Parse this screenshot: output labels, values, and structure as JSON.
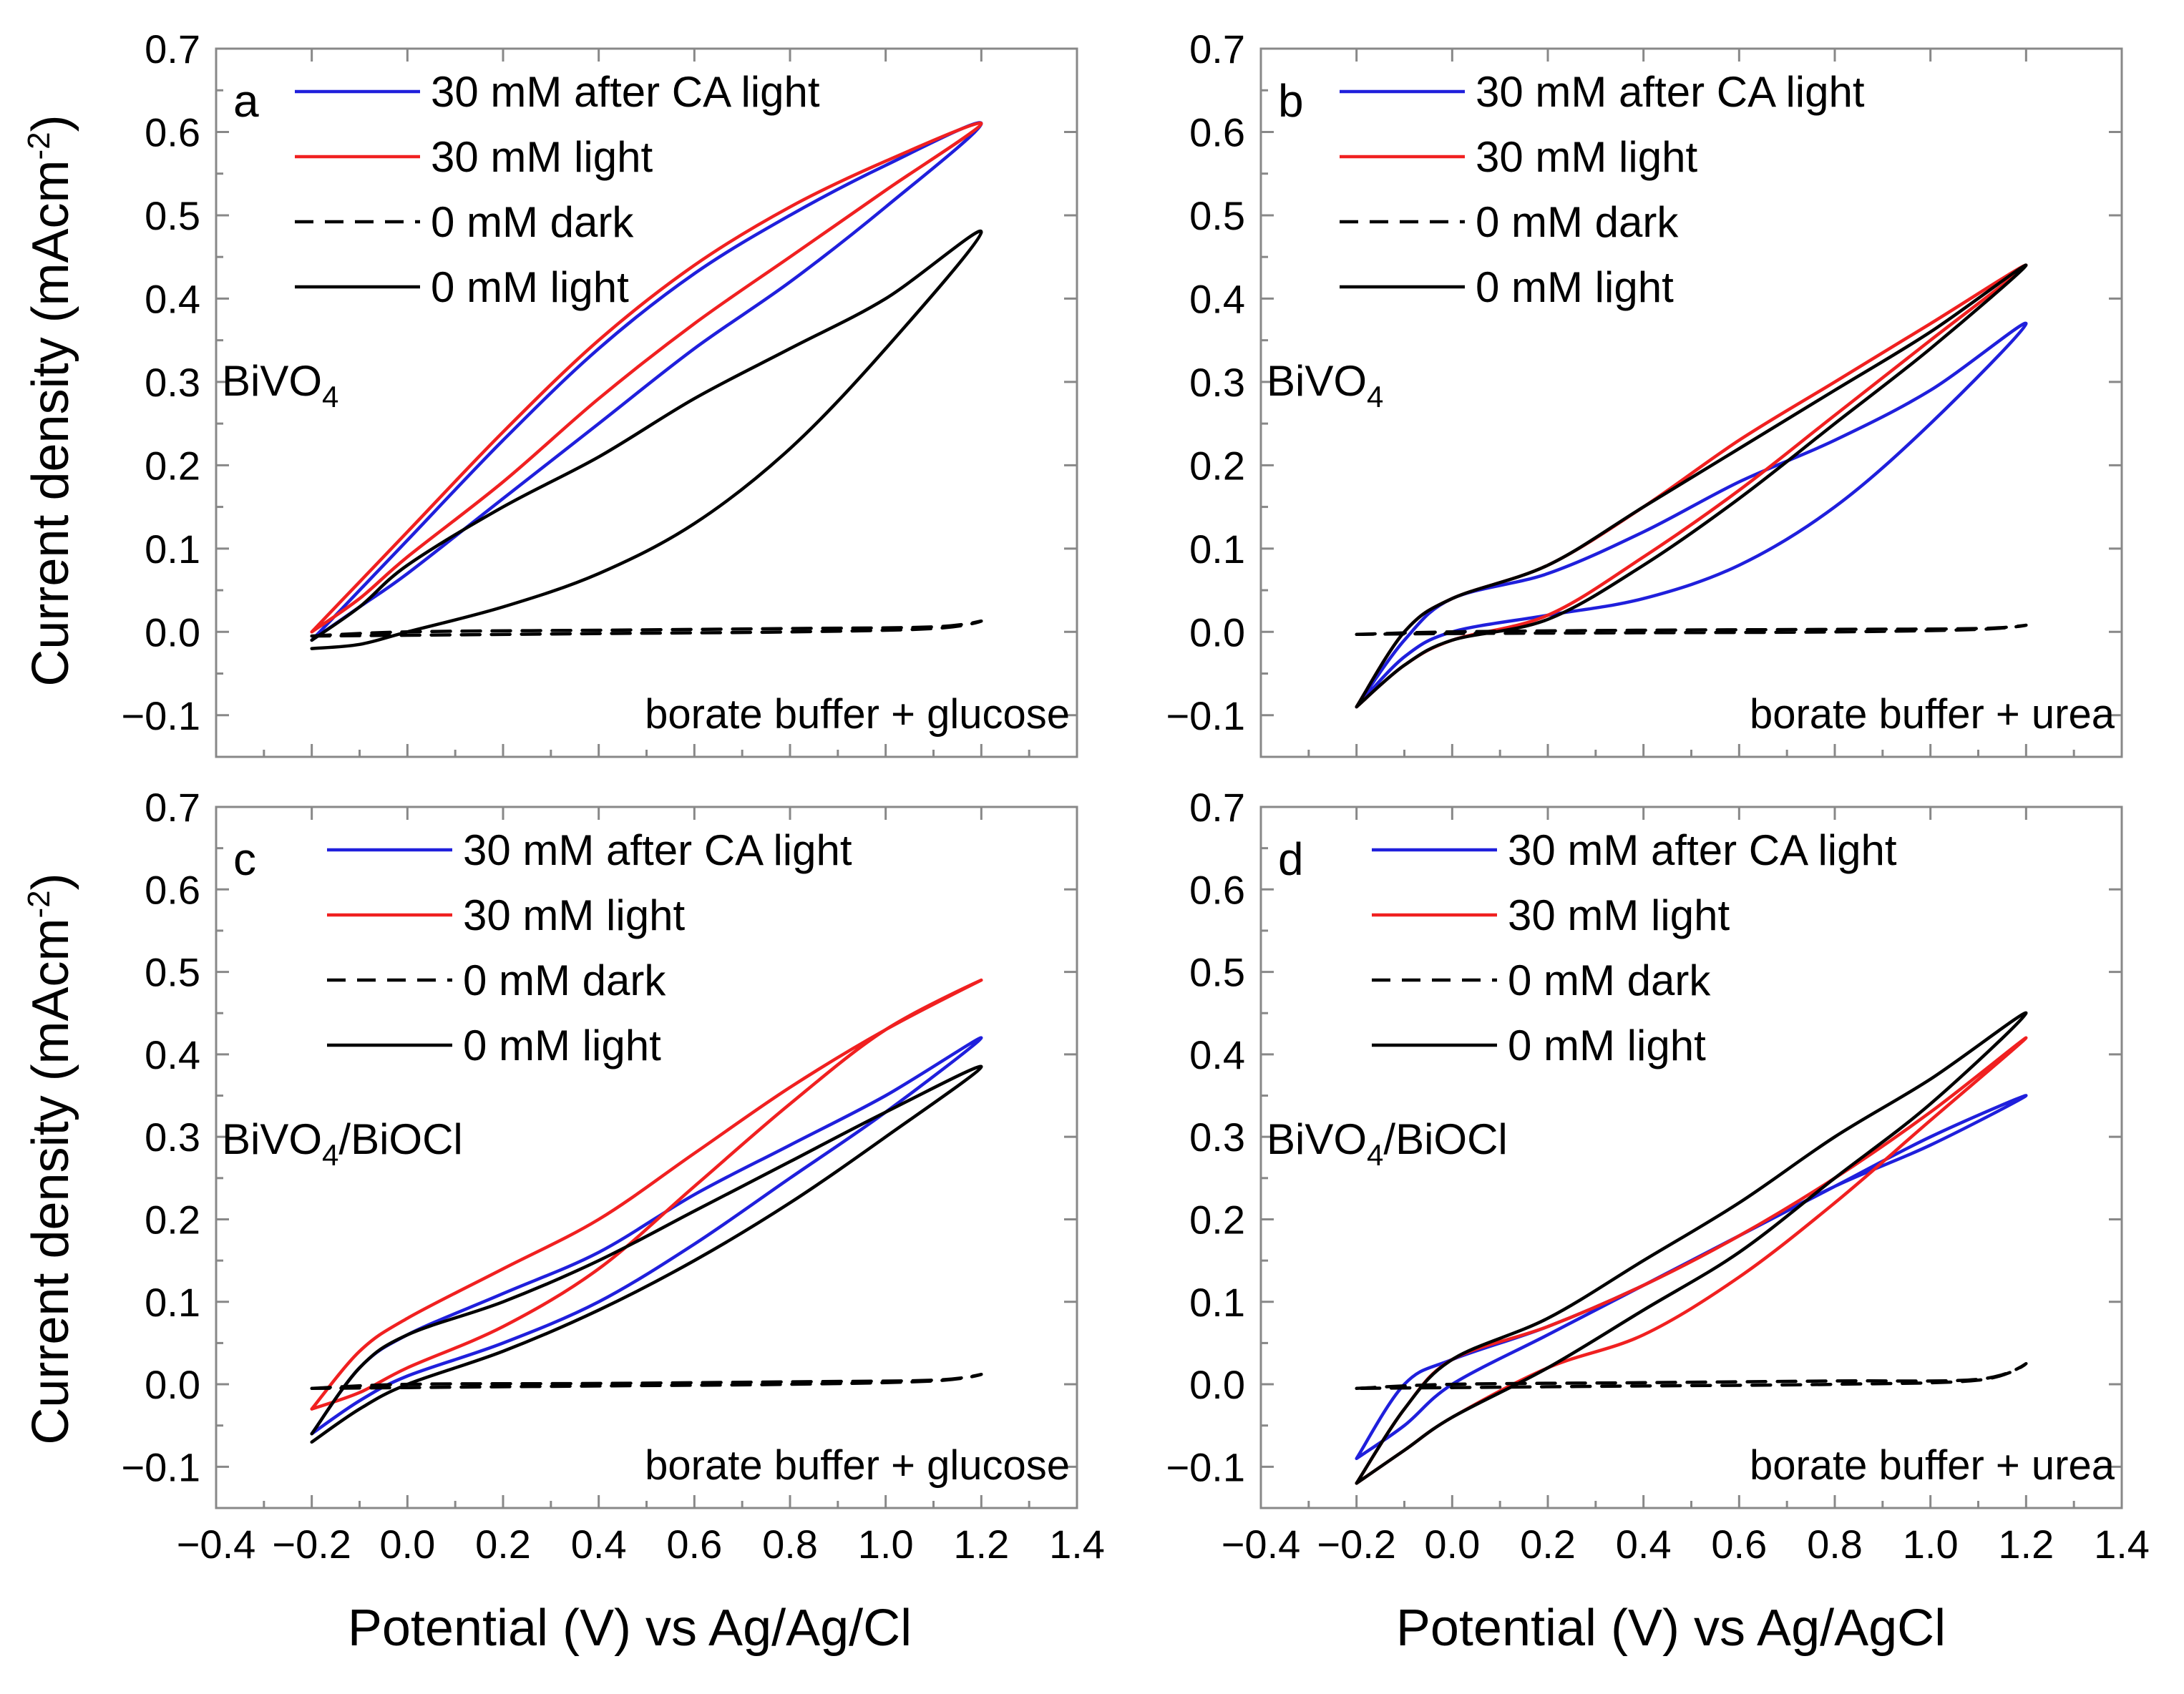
{
  "figure": {
    "x_axis_title_left": "Potential (V) vs Ag/Ag/Cl",
    "x_axis_title_right": "Potential (V) vs Ag/AgCl",
    "y_axis_title_top": "Current density (mAcm",
    "y_axis_title_bottom": "Current density (mAcm",
    "y_axis_title_sup": "-2",
    "y_axis_title_close": ")"
  },
  "colors": {
    "blue": "#1f1fdc",
    "red": "#f02020",
    "black": "#000000"
  },
  "chart_data": [
    {
      "type": "line",
      "panel": "a",
      "material": "BiVO",
      "material_sub": "4",
      "material_suffix": "",
      "electrolyte": "borate buffer + glucose",
      "xlim": [
        -0.4,
        1.4
      ],
      "ylim": [
        -0.15,
        0.7
      ],
      "xticks": [
        "−0.4",
        "−0.2",
        "0.0",
        "0.2",
        "0.4",
        "0.6",
        "0.8",
        "1.0",
        "1.2",
        "1.4"
      ],
      "yticks": [
        "−0.1",
        "0.0",
        "0.1",
        "0.2",
        "0.3",
        "0.4",
        "0.5",
        "0.6",
        "0.7"
      ],
      "legend": [
        "30 mM after CA light",
        "30 mM light",
        "0 mM dark",
        "0 mM light"
      ],
      "series": [
        {
          "name": "30 mM after CA light",
          "color": "blue",
          "style": "solid",
          "x": [
            -0.2,
            -0.1,
            0.0,
            0.2,
            0.4,
            0.6,
            0.8,
            1.0,
            1.2,
            1.0,
            0.8,
            0.6,
            0.4,
            0.2,
            0.0,
            -0.1,
            -0.2
          ],
          "y": [
            -0.01,
            0.05,
            0.11,
            0.23,
            0.34,
            0.43,
            0.5,
            0.56,
            0.61,
            0.51,
            0.42,
            0.34,
            0.25,
            0.16,
            0.07,
            0.03,
            -0.01
          ]
        },
        {
          "name": "30 mM light",
          "color": "red",
          "style": "solid",
          "x": [
            -0.2,
            -0.1,
            0.0,
            0.2,
            0.4,
            0.6,
            0.8,
            1.0,
            1.2,
            1.0,
            0.8,
            0.6,
            0.4,
            0.2,
            0.0,
            -0.1,
            -0.2
          ],
          "y": [
            0.0,
            0.06,
            0.12,
            0.24,
            0.35,
            0.44,
            0.51,
            0.565,
            0.61,
            0.53,
            0.45,
            0.37,
            0.28,
            0.18,
            0.09,
            0.04,
            0.0
          ]
        },
        {
          "name": "0 mM dark",
          "color": "black",
          "style": "dashed",
          "x": [
            -0.2,
            0.0,
            0.4,
            0.8,
            1.1,
            1.2,
            1.1,
            0.8,
            0.4,
            0.0,
            -0.2
          ],
          "y": [
            -0.005,
            0.0,
            0.002,
            0.004,
            0.006,
            0.013,
            0.004,
            0.0,
            -0.002,
            -0.004,
            -0.005
          ]
        },
        {
          "name": "0 mM light",
          "color": "black",
          "style": "solid",
          "x": [
            -0.2,
            -0.1,
            0.0,
            0.2,
            0.4,
            0.6,
            0.8,
            1.0,
            1.2,
            1.0,
            0.8,
            0.6,
            0.4,
            0.2,
            0.0,
            -0.1,
            -0.2
          ],
          "y": [
            -0.01,
            0.03,
            0.08,
            0.15,
            0.21,
            0.28,
            0.34,
            0.4,
            0.48,
            0.34,
            0.22,
            0.13,
            0.07,
            0.03,
            0.0,
            -0.015,
            -0.02
          ]
        }
      ]
    },
    {
      "type": "line",
      "panel": "b",
      "material": "BiVO",
      "material_sub": "4",
      "material_suffix": "",
      "electrolyte": "borate buffer + urea",
      "xlim": [
        -0.4,
        1.4
      ],
      "ylim": [
        -0.15,
        0.7
      ],
      "xticks": [
        "−0.4",
        "−0.2",
        "0.0",
        "0.2",
        "0.4",
        "0.6",
        "0.8",
        "1.0",
        "1.2",
        "1.4"
      ],
      "yticks": [
        "−0.1",
        "0.0",
        "0.1",
        "0.2",
        "0.3",
        "0.4",
        "0.5",
        "0.6",
        "0.7"
      ],
      "legend": [
        "30 mM after CA light",
        "30 mM light",
        "0 mM dark",
        "0 mM light"
      ],
      "series": [
        {
          "name": "30 mM after CA light",
          "color": "blue",
          "style": "solid",
          "x": [
            -0.2,
            -0.1,
            0.0,
            0.2,
            0.4,
            0.6,
            0.8,
            1.0,
            1.2,
            1.0,
            0.8,
            0.6,
            0.4,
            0.2,
            0.0,
            -0.1,
            -0.2
          ],
          "y": [
            -0.09,
            -0.01,
            0.04,
            0.07,
            0.12,
            0.18,
            0.23,
            0.29,
            0.37,
            0.25,
            0.15,
            0.08,
            0.04,
            0.02,
            0.0,
            -0.03,
            -0.09
          ]
        },
        {
          "name": "30 mM light",
          "color": "red",
          "style": "solid",
          "x": [
            -0.2,
            -0.1,
            0.0,
            0.2,
            0.4,
            0.6,
            0.8,
            1.0,
            1.2,
            1.0,
            0.8,
            0.6,
            0.4,
            0.2,
            0.0,
            -0.1,
            -0.2
          ],
          "y": [
            -0.09,
            0.0,
            0.04,
            0.08,
            0.15,
            0.23,
            0.3,
            0.37,
            0.44,
            0.35,
            0.26,
            0.17,
            0.09,
            0.02,
            -0.01,
            -0.04,
            -0.09
          ]
        },
        {
          "name": "0 mM dark",
          "color": "black",
          "style": "dashed",
          "x": [
            -0.2,
            0.0,
            0.4,
            0.8,
            1.1,
            1.2,
            1.1,
            0.8,
            0.4,
            0.0,
            -0.2
          ],
          "y": [
            -0.003,
            0.0,
            0.002,
            0.003,
            0.004,
            0.008,
            0.003,
            0.0,
            -0.001,
            -0.002,
            -0.003
          ]
        },
        {
          "name": "0 mM light",
          "color": "black",
          "style": "solid",
          "x": [
            -0.2,
            -0.1,
            0.0,
            0.2,
            0.4,
            0.6,
            0.8,
            1.0,
            1.2,
            1.0,
            0.8,
            0.6,
            0.4,
            0.2,
            0.0,
            -0.1,
            -0.2
          ],
          "y": [
            -0.09,
            0.0,
            0.04,
            0.08,
            0.15,
            0.22,
            0.29,
            0.36,
            0.44,
            0.34,
            0.25,
            0.16,
            0.08,
            0.015,
            -0.01,
            -0.04,
            -0.09
          ]
        }
      ]
    },
    {
      "type": "line",
      "panel": "c",
      "material": "BiVO",
      "material_sub": "4",
      "material_suffix": "/BiOCl",
      "electrolyte": "borate buffer + glucose",
      "xlim": [
        -0.4,
        1.4
      ],
      "ylim": [
        -0.15,
        0.7
      ],
      "xticks": [
        "−0.4",
        "−0.2",
        "0.0",
        "0.2",
        "0.4",
        "0.6",
        "0.8",
        "1.0",
        "1.2",
        "1.4"
      ],
      "yticks": [
        "−0.1",
        "0.0",
        "0.1",
        "0.2",
        "0.3",
        "0.4",
        "0.5",
        "0.6",
        "0.7"
      ],
      "legend": [
        "30 mM after CA light",
        "30 mM light",
        "0 mM dark",
        "0 mM light"
      ],
      "series": [
        {
          "name": "30 mM after CA light",
          "color": "blue",
          "style": "solid",
          "x": [
            -0.2,
            -0.1,
            0.0,
            0.2,
            0.4,
            0.6,
            0.8,
            1.0,
            1.2,
            1.0,
            0.8,
            0.6,
            0.4,
            0.2,
            0.0,
            -0.1,
            -0.2
          ],
          "y": [
            -0.06,
            0.02,
            0.06,
            0.11,
            0.16,
            0.23,
            0.29,
            0.35,
            0.42,
            0.33,
            0.25,
            0.17,
            0.1,
            0.05,
            0.01,
            -0.02,
            -0.06
          ]
        },
        {
          "name": "30 mM light",
          "color": "red",
          "style": "solid",
          "x": [
            -0.2,
            -0.1,
            0.0,
            0.2,
            0.4,
            0.6,
            0.8,
            1.0,
            1.2,
            1.0,
            0.8,
            0.6,
            0.4,
            0.2,
            0.0,
            -0.1,
            -0.2
          ],
          "y": [
            -0.03,
            0.04,
            0.08,
            0.14,
            0.2,
            0.28,
            0.36,
            0.43,
            0.49,
            0.43,
            0.34,
            0.24,
            0.14,
            0.07,
            0.02,
            -0.01,
            -0.03
          ]
        },
        {
          "name": "0 mM dark",
          "color": "black",
          "style": "dashed",
          "x": [
            -0.2,
            0.0,
            0.4,
            0.8,
            1.1,
            1.2,
            1.1,
            0.8,
            0.4,
            0.0,
            -0.2
          ],
          "y": [
            -0.005,
            0.0,
            0.001,
            0.003,
            0.005,
            0.012,
            0.004,
            0.0,
            -0.002,
            -0.004,
            -0.005
          ]
        },
        {
          "name": "0 mM light",
          "color": "black",
          "style": "solid",
          "x": [
            -0.2,
            -0.1,
            0.0,
            0.2,
            0.4,
            0.6,
            0.8,
            1.0,
            1.2,
            1.0,
            0.8,
            0.6,
            0.4,
            0.2,
            0.0,
            -0.1,
            -0.2
          ],
          "y": [
            -0.06,
            0.02,
            0.06,
            0.1,
            0.15,
            0.21,
            0.27,
            0.33,
            0.385,
            0.3,
            0.22,
            0.15,
            0.09,
            0.04,
            0.0,
            -0.03,
            -0.07
          ]
        }
      ]
    },
    {
      "type": "line",
      "panel": "d",
      "material": "BiVO",
      "material_sub": "4",
      "material_suffix": "/BiOCl",
      "electrolyte": "borate buffer + urea",
      "xlim": [
        -0.4,
        1.4
      ],
      "ylim": [
        -0.15,
        0.7
      ],
      "xticks": [
        "−0.4",
        "−0.2",
        "0.0",
        "0.2",
        "0.4",
        "0.6",
        "0.8",
        "1.0",
        "1.2",
        "1.4"
      ],
      "yticks": [
        "−0.1",
        "0.0",
        "0.1",
        "0.2",
        "0.3",
        "0.4",
        "0.5",
        "0.6",
        "0.7"
      ],
      "legend": [
        "30 mM after CA light",
        "30 mM light",
        "0 mM dark",
        "0 mM light"
      ],
      "series": [
        {
          "name": "30 mM after CA light",
          "color": "blue",
          "style": "solid",
          "x": [
            -0.2,
            -0.1,
            0.0,
            0.2,
            0.4,
            0.6,
            0.8,
            1.0,
            1.2,
            1.0,
            0.8,
            0.6,
            0.4,
            0.2,
            0.0,
            -0.1,
            -0.2
          ],
          "y": [
            -0.09,
            0.0,
            0.03,
            0.07,
            0.12,
            0.18,
            0.24,
            0.29,
            0.35,
            0.3,
            0.24,
            0.18,
            0.12,
            0.06,
            0.0,
            -0.05,
            -0.09
          ]
        },
        {
          "name": "30 mM light",
          "color": "red",
          "style": "solid",
          "x": [
            -0.2,
            -0.1,
            0.0,
            0.2,
            0.4,
            0.6,
            0.8,
            1.0,
            1.2,
            1.0,
            0.8,
            0.6,
            0.4,
            0.2,
            0.0,
            -0.1,
            -0.2
          ],
          "y": [
            -0.12,
            -0.03,
            0.03,
            0.07,
            0.12,
            0.18,
            0.25,
            0.33,
            0.42,
            0.32,
            0.22,
            0.13,
            0.06,
            0.02,
            -0.04,
            -0.08,
            -0.12
          ]
        },
        {
          "name": "0 mM dark",
          "color": "black",
          "style": "dashed",
          "x": [
            -0.2,
            0.0,
            0.4,
            0.8,
            1.1,
            1.2,
            1.1,
            0.8,
            0.4,
            0.0,
            -0.2
          ],
          "y": [
            -0.005,
            0.0,
            0.002,
            0.004,
            0.006,
            0.025,
            0.005,
            0.0,
            -0.002,
            -0.004,
            -0.005
          ]
        },
        {
          "name": "0 mM light",
          "color": "black",
          "style": "solid",
          "x": [
            -0.2,
            -0.1,
            0.0,
            0.2,
            0.4,
            0.6,
            0.8,
            1.0,
            1.2,
            1.0,
            0.8,
            0.6,
            0.4,
            0.2,
            0.0,
            -0.1,
            -0.2
          ],
          "y": [
            -0.12,
            -0.03,
            0.03,
            0.08,
            0.15,
            0.22,
            0.3,
            0.37,
            0.45,
            0.34,
            0.25,
            0.16,
            0.09,
            0.02,
            -0.04,
            -0.08,
            -0.12
          ]
        }
      ]
    }
  ]
}
